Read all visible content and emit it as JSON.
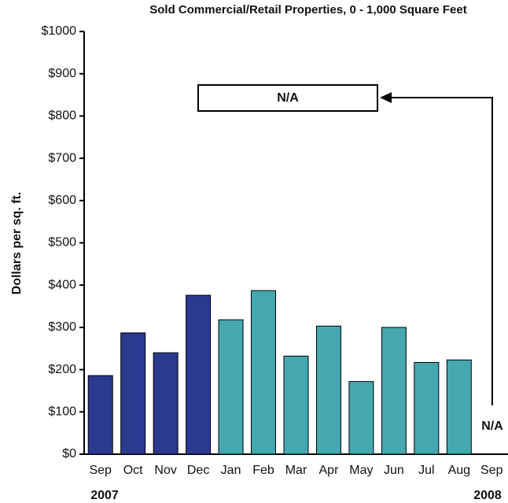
{
  "chart_data": {
    "type": "bar",
    "title": "Sold Commercial/Retail Properties, 0 - 1,000 Square Feet",
    "ylabel": "Dollars per sq. ft.",
    "categories": [
      "Sep",
      "Oct",
      "Nov",
      "Dec",
      "Jan",
      "Feb",
      "Mar",
      "Apr",
      "May",
      "Jun",
      "Jul",
      "Aug",
      "Sep"
    ],
    "values": [
      186,
      287,
      240,
      376,
      318,
      387,
      232,
      303,
      172,
      300,
      217,
      223,
      null
    ],
    "colors": [
      "#2b3990",
      "#2b3990",
      "#2b3990",
      "#2b3990",
      "#45a8b0",
      "#45a8b0",
      "#45a8b0",
      "#45a8b0",
      "#45a8b0",
      "#45a8b0",
      "#45a8b0",
      "#45a8b0",
      "#45a8b0"
    ],
    "ylim": [
      0,
      1000
    ],
    "yticks": [
      {
        "value": 0,
        "label": "$0"
      },
      {
        "value": 100,
        "label": "$100"
      },
      {
        "value": 200,
        "label": "$200"
      },
      {
        "value": 300,
        "label": "$300"
      },
      {
        "value": 400,
        "label": "$400"
      },
      {
        "value": 500,
        "label": "$500"
      },
      {
        "value": 600,
        "label": "$600"
      },
      {
        "value": 700,
        "label": "$700"
      },
      {
        "value": 800,
        "label": "$800"
      },
      {
        "value": 900,
        "label": "$900"
      },
      {
        "value": 1000,
        "label": "$1000"
      }
    ],
    "annotations": [
      "N/A",
      "N/A",
      "2007",
      "2008"
    ]
  }
}
